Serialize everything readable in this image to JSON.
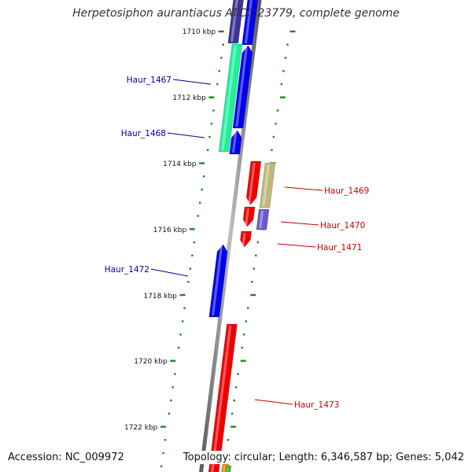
{
  "title": "Herpetosiphon aurantiacus ATCC 23779, complete genome",
  "accession_text": "Accession: NC_009972",
  "summary_text": "Topology: circular; Length: 6,346,587 bp; Genes: 5,042",
  "colors": {
    "backbone": "#8a8a8a",
    "tick": "#1e8a1e",
    "label_plus": "#00009a",
    "label_minus": "#cc0000"
  },
  "ruler": [
    {
      "label": "1710 kbp"
    },
    {
      "label": "1712 kbp"
    },
    {
      "label": "1714 kbp"
    },
    {
      "label": "1716 kbp"
    },
    {
      "label": "1718 kbp"
    },
    {
      "label": "1720 kbp"
    },
    {
      "label": "1722 kbp"
    }
  ],
  "genes": [
    {
      "name": "",
      "strand": "+",
      "color": "#3c3296"
    },
    {
      "name": "",
      "strand": "+",
      "color": "#0000ee"
    },
    {
      "name": "Haur_1467",
      "strand": "+",
      "color": "#22ee99"
    },
    {
      "name": "",
      "strand": "+",
      "color": "#0000ee"
    },
    {
      "name": "Haur_1468",
      "strand": "+",
      "color": "#0000ee"
    },
    {
      "name": "Haur_1469",
      "strand": "-",
      "color": "#ee0000"
    },
    {
      "name": "",
      "strand": "-",
      "color": "#c0b87a"
    },
    {
      "name": "Haur_1470",
      "strand": "-",
      "color": "#6a5acd"
    },
    {
      "name": "",
      "strand": "-",
      "color": "#ee0000"
    },
    {
      "name": "Haur_1471",
      "strand": "-",
      "color": "#ee0000"
    },
    {
      "name": "Haur_1472",
      "strand": "+",
      "color": "#0000ee"
    },
    {
      "name": "Haur_1473",
      "strand": "-",
      "color": "#ee0000"
    },
    {
      "name": "",
      "strand": "-",
      "color": "#ee8800"
    },
    {
      "name": "",
      "strand": "-",
      "color": "#33bb33"
    }
  ]
}
